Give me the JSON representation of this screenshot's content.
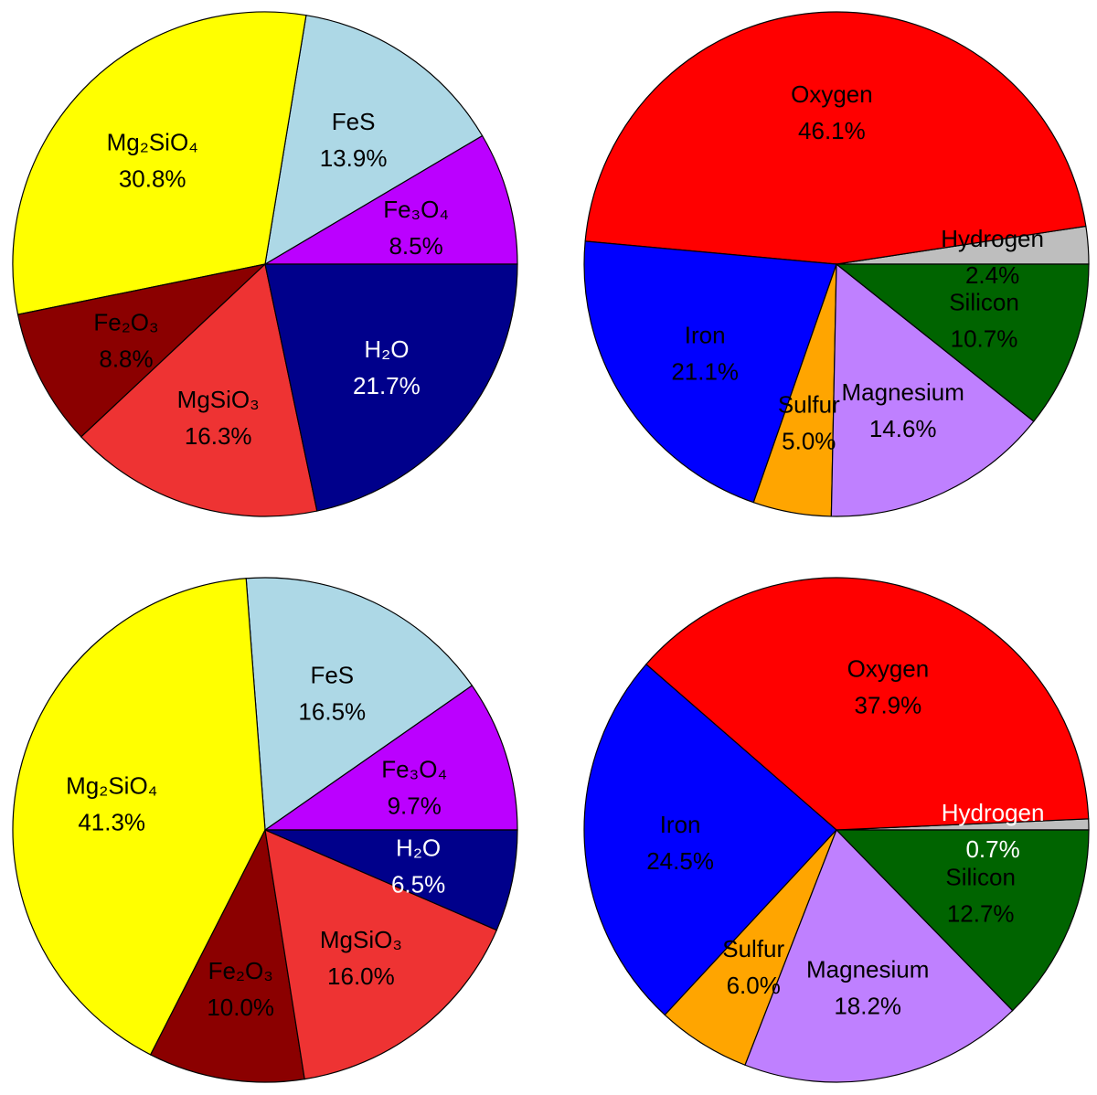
{
  "chart_data": [
    {
      "type": "pie",
      "slices": [
        {
          "label": "Fe₃O₄",
          "value": 8.5,
          "value_label": "8.5%",
          "color": "#BB00FF",
          "text_color": "#000000"
        },
        {
          "label": "FeS",
          "value": 13.9,
          "value_label": "13.9%",
          "color": "#ADD8E6",
          "text_color": "#000000"
        },
        {
          "label": "Mg₂SiO₄",
          "value": 30.8,
          "value_label": "30.8%",
          "color": "#FFFF00",
          "text_color": "#000000"
        },
        {
          "label": "Fe₂O₃",
          "value": 8.8,
          "value_label": "8.8%",
          "color": "#8B0000",
          "text_color": "#000000"
        },
        {
          "label": "MgSiO₃",
          "value": 16.3,
          "value_label": "16.3%",
          "color": "#EE3333",
          "text_color": "#000000"
        },
        {
          "label": "H₂O",
          "value": 21.7,
          "value_label": "21.7%",
          "color": "#00008B",
          "text_color": "#FFFFFF"
        }
      ]
    },
    {
      "type": "pie",
      "slices": [
        {
          "label": "Hydrogen",
          "value": 2.4,
          "value_label": "2.4%",
          "color": "#BEBEBE",
          "text_color": "#000000"
        },
        {
          "label": "Oxygen",
          "value": 46.1,
          "value_label": "46.1%",
          "color": "#FF0000",
          "text_color": "#000000"
        },
        {
          "label": "Iron",
          "value": 21.1,
          "value_label": "21.1%",
          "color": "#0000FF",
          "text_color": "#000000"
        },
        {
          "label": "Sulfur",
          "value": 5.0,
          "value_label": "5.0%",
          "color": "#FFA500",
          "text_color": "#000000"
        },
        {
          "label": "Magnesium",
          "value": 14.6,
          "value_label": "14.6%",
          "color": "#BF80FF",
          "text_color": "#000000"
        },
        {
          "label": "Silicon",
          "value": 10.7,
          "value_label": "10.7%",
          "color": "#006400",
          "text_color": "#000000"
        }
      ]
    },
    {
      "type": "pie",
      "slices": [
        {
          "label": "Fe₃O₄",
          "value": 9.7,
          "value_label": "9.7%",
          "color": "#BB00FF",
          "text_color": "#000000"
        },
        {
          "label": "FeS",
          "value": 16.5,
          "value_label": "16.5%",
          "color": "#ADD8E6",
          "text_color": "#000000"
        },
        {
          "label": "Mg₂SiO₄",
          "value": 41.3,
          "value_label": "41.3%",
          "color": "#FFFF00",
          "text_color": "#000000"
        },
        {
          "label": "Fe₂O₃",
          "value": 10.0,
          "value_label": "10.0%",
          "color": "#8B0000",
          "text_color": "#000000"
        },
        {
          "label": "MgSiO₃",
          "value": 16.0,
          "value_label": "16.0%",
          "color": "#EE3333",
          "text_color": "#000000"
        },
        {
          "label": "H₂O",
          "value": 6.5,
          "value_label": "6.5%",
          "color": "#00008B",
          "text_color": "#FFFFFF"
        }
      ]
    },
    {
      "type": "pie",
      "slices": [
        {
          "label": "Hydrogen",
          "value": 0.7,
          "value_label": "0.7%",
          "color": "#BEBEBE",
          "text_color": "#FFFFFF"
        },
        {
          "label": "Oxygen",
          "value": 37.9,
          "value_label": "37.9%",
          "color": "#FF0000",
          "text_color": "#000000"
        },
        {
          "label": "Iron",
          "value": 24.5,
          "value_label": "24.5%",
          "color": "#0000FF",
          "text_color": "#000000"
        },
        {
          "label": "Sulfur",
          "value": 6.0,
          "value_label": "6.0%",
          "color": "#FFA500",
          "text_color": "#000000"
        },
        {
          "label": "Magnesium",
          "value": 18.2,
          "value_label": "18.2%",
          "color": "#BF80FF",
          "text_color": "#000000"
        },
        {
          "label": "Silicon",
          "value": 12.7,
          "value_label": "12.7%",
          "color": "#006400",
          "text_color": "#000000"
        }
      ]
    }
  ]
}
